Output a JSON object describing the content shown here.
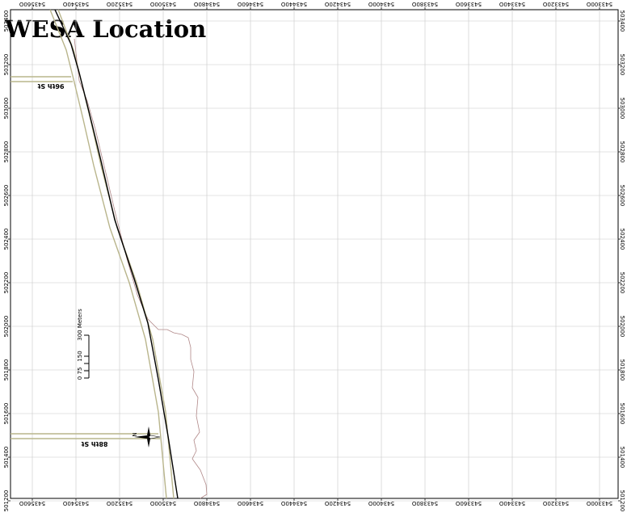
{
  "title": "WESA Location",
  "x_ticks": [
    "543560O",
    "543540O",
    "543520O",
    "543500O",
    "543480O",
    "543460O",
    "543440O",
    "543420O",
    "543400O",
    "543380O",
    "543360O",
    "543340O",
    "543320O",
    "543300O"
  ],
  "y_ticks": [
    "503400",
    "503200",
    "503000",
    "502800",
    "502600",
    "502400",
    "502200",
    "502000",
    "501800",
    "501600",
    "501400",
    "501200"
  ],
  "streets": {
    "upper": "96th St",
    "lower": "88th St"
  },
  "scale_bar": {
    "unit_label": "300 Meters",
    "tick_labels": [
      "0",
      "75",
      "150"
    ]
  },
  "north_arrow_label": "N",
  "colors": {
    "road_casing": "#b9b58c",
    "shoreline": "#b08888",
    "rail": "#000000",
    "grid": "#c8c8c8"
  }
}
